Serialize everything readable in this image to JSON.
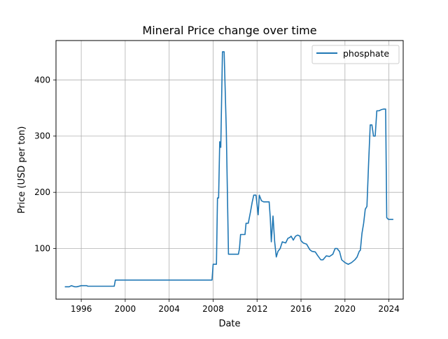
{
  "chart_data": {
    "type": "line",
    "title": "Mineral Price change over time",
    "xlabel": "Date",
    "ylabel": "Price (USD per ton)",
    "x_axis": "date",
    "xlim": [
      1993.7,
      2025.3
    ],
    "ylim": [
      10,
      470
    ],
    "xticks": [
      1996,
      2000,
      2004,
      2008,
      2012,
      2016,
      2020,
      2024
    ],
    "yticks": [
      100,
      200,
      300,
      400
    ],
    "grid": true,
    "legend_position": "top-right",
    "colors": {
      "series": "#1f77b4",
      "grid": "#b0b0b0",
      "axes": "#000000"
    },
    "series": [
      {
        "name": "phosphate",
        "x": [
          1994.5,
          1994.9,
          1995.1,
          1995.4,
          1995.6,
          1996.0,
          1996.5,
          1996.6,
          1999.0,
          1999.1,
          1999.3,
          2007.5,
          2007.9,
          2008.0,
          2008.3,
          2008.4,
          2008.5,
          2008.6,
          2008.7,
          2008.85,
          2009.0,
          2009.2,
          2009.4,
          2009.6,
          2009.8,
          2010.0,
          2010.3,
          2010.4,
          2010.5,
          2010.7,
          2010.9,
          2011.0,
          2011.2,
          2011.4,
          2011.55,
          2011.7,
          2011.9,
          2012.1,
          2012.2,
          2012.4,
          2012.6,
          2012.9,
          2013.1,
          2013.2,
          2013.3,
          2013.45,
          2013.6,
          2013.75,
          2013.9,
          2014.1,
          2014.3,
          2014.6,
          2014.8,
          2015.0,
          2015.1,
          2015.3,
          2015.5,
          2015.7,
          2015.9,
          2016.0,
          2016.2,
          2016.5,
          2016.8,
          2017.0,
          2017.3,
          2017.5,
          2017.8,
          2018.0,
          2018.3,
          2018.6,
          2018.9,
          2019.1,
          2019.3,
          2019.4,
          2019.5,
          2019.7,
          2020.0,
          2020.3,
          2020.6,
          2020.9,
          2021.1,
          2021.3,
          2021.4,
          2021.55,
          2021.7,
          2021.85,
          2022.0,
          2022.15,
          2022.3,
          2022.45,
          2022.6,
          2022.75,
          2022.9,
          2023.1,
          2023.3,
          2023.5,
          2023.7,
          2023.8,
          2023.95,
          2024.0,
          2024.4
        ],
        "values": [
          32,
          32,
          34,
          32,
          32,
          34,
          34,
          33,
          33,
          44,
          44,
          44,
          44,
          72,
          72,
          190,
          190,
          290,
          280,
          450,
          450,
          310,
          90,
          90,
          90,
          90,
          90,
          100,
          125,
          125,
          125,
          145,
          145,
          165,
          182,
          195,
          195,
          160,
          195,
          185,
          183,
          183,
          183,
          155,
          112,
          158,
          112,
          85,
          95,
          100,
          112,
          110,
          118,
          120,
          122,
          115,
          122,
          124,
          122,
          114,
          110,
          108,
          98,
          95,
          94,
          88,
          80,
          80,
          87,
          86,
          90,
          100,
          100,
          97,
          95,
          80,
          75,
          72,
          75,
          80,
          85,
          95,
          97,
          127,
          145,
          170,
          175,
          252,
          320,
          320,
          300,
          300,
          345,
          345,
          347,
          348,
          348,
          155,
          152,
          152,
          152
        ]
      }
    ]
  }
}
